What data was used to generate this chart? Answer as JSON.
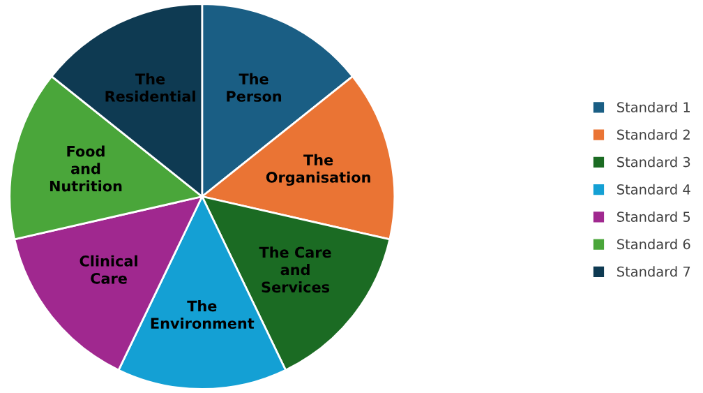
{
  "chart_data": {
    "type": "pie",
    "categories": [
      "Standard 1",
      "Standard 2",
      "Standard 3",
      "Standard 4",
      "Standard 5",
      "Standard 6",
      "Standard 7"
    ],
    "values": [
      14.2857,
      14.2857,
      14.2857,
      14.2857,
      14.2857,
      14.2857,
      14.2857
    ],
    "colors": [
      "#1a5e84",
      "#ea7434",
      "#1b6b23",
      "#14a0d4",
      "#a0288f",
      "#4aa63a",
      "#0e3a52"
    ],
    "value_labels": [
      "The\nPerson",
      "The\nOrganisation",
      "The Care\nand\nServices",
      "The\nEnvironment",
      "Clinical\nCare",
      "Food\nand\nNutrition",
      "The\nResidential"
    ],
    "legend": "right"
  }
}
